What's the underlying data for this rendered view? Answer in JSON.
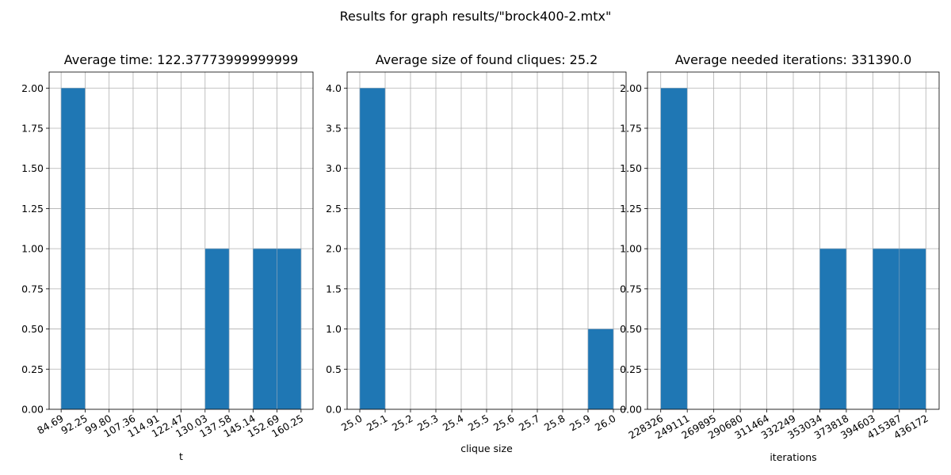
{
  "title": "Results for graph results/\"brock400-2.mtx\"",
  "chart_data": [
    {
      "type": "histogram",
      "title": "Average time: 122.37773999999999",
      "xlabel": "t",
      "color": "#1f77b4",
      "grid": true,
      "bins": [
        84.69,
        92.25,
        99.8,
        107.36,
        114.91,
        122.47,
        130.03,
        137.58,
        145.14,
        152.69,
        160.25
      ],
      "values": [
        2,
        0,
        0,
        0,
        0,
        0,
        1,
        0,
        1,
        1
      ],
      "xlim": [
        80.91,
        164.03
      ],
      "xticks": [
        84.69,
        92.25,
        {
          "value": 99.8,
          "label": "99.80"
        },
        107.36,
        114.91,
        122.47,
        130.03,
        137.58,
        145.14,
        152.69,
        160.25
      ],
      "ylim": [
        0,
        2.1
      ],
      "yticks": [
        {
          "value": 0,
          "label": "0.00"
        },
        {
          "value": 0.25,
          "label": "0.25"
        },
        {
          "value": 0.5,
          "label": "0.50"
        },
        {
          "value": 0.75,
          "label": "0.75"
        },
        {
          "value": 1,
          "label": "1.00"
        },
        {
          "value": 1.25,
          "label": "1.25"
        },
        {
          "value": 1.5,
          "label": "1.50"
        },
        {
          "value": 1.75,
          "label": "1.75"
        },
        {
          "value": 2,
          "label": "2.00"
        }
      ]
    },
    {
      "type": "histogram",
      "title": "Average size of found cliques: 25.2",
      "xlabel": "clique size",
      "color": "#1f77b4",
      "grid": true,
      "bins": [
        25.0,
        25.1,
        25.2,
        25.3,
        25.4,
        25.5,
        25.6,
        25.7,
        25.8,
        25.9,
        26.0
      ],
      "values": [
        4,
        0,
        0,
        0,
        0,
        0,
        0,
        0,
        0,
        1
      ],
      "xlim": [
        24.95,
        26.05
      ],
      "xticks": [
        {
          "value": 25,
          "label": "25.0"
        },
        25.1,
        25.2,
        25.3,
        25.4,
        25.5,
        25.6,
        25.7,
        25.8,
        25.9,
        {
          "value": 26,
          "label": "26.0"
        }
      ],
      "ylim": [
        0,
        4.2
      ],
      "yticks": [
        {
          "value": 0,
          "label": "0.0"
        },
        0.5,
        {
          "value": 1,
          "label": "1.0"
        },
        1.5,
        {
          "value": 2,
          "label": "2.0"
        },
        2.5,
        {
          "value": 3,
          "label": "3.0"
        },
        3.5,
        {
          "value": 4,
          "label": "4.0"
        }
      ]
    },
    {
      "type": "histogram",
      "title": "Average needed iterations: 331390.0",
      "xlabel": "iterations",
      "color": "#1f77b4",
      "grid": true,
      "bins": [
        228326,
        249111,
        269895,
        290680,
        311464,
        332249,
        353034,
        373818,
        394603,
        415387,
        436172
      ],
      "values": [
        2,
        0,
        0,
        0,
        0,
        0,
        1,
        0,
        1,
        1
      ],
      "xlim": [
        217934,
        446564
      ],
      "xticks": [
        228326,
        249111,
        269895,
        290680,
        311464,
        332249,
        353034,
        373818,
        394603,
        415387,
        436172
      ],
      "ylim": [
        0,
        2.1
      ],
      "yticks": [
        {
          "value": 0,
          "label": "0.00"
        },
        {
          "value": 0.25,
          "label": "0.25"
        },
        {
          "value": 0.5,
          "label": "0.50"
        },
        {
          "value": 0.75,
          "label": "0.75"
        },
        {
          "value": 1,
          "label": "1.00"
        },
        {
          "value": 1.25,
          "label": "1.25"
        },
        {
          "value": 1.5,
          "label": "1.50"
        },
        {
          "value": 1.75,
          "label": "1.75"
        },
        {
          "value": 2,
          "label": "2.00"
        }
      ]
    }
  ]
}
